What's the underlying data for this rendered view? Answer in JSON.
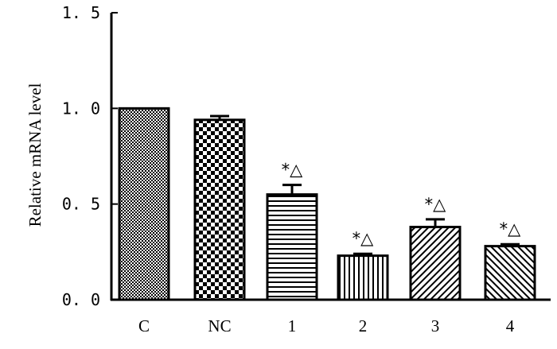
{
  "chart_data": {
    "type": "bar",
    "ylabel": "Relative mRNA level",
    "xlabel": "",
    "ylim": [
      0,
      1.5
    ],
    "yticks": [
      "0. 0",
      "0. 5",
      "1. 0",
      "1. 5"
    ],
    "ytick_values": [
      0,
      0.5,
      1.0,
      1.5
    ],
    "categories": [
      "C",
      "NC",
      "1",
      "2",
      "3",
      "4"
    ],
    "values": [
      1.0,
      0.94,
      0.55,
      0.23,
      0.38,
      0.28
    ],
    "errors": [
      0.0,
      0.02,
      0.05,
      0.01,
      0.04,
      0.01
    ],
    "significance": [
      "",
      "",
      "*△",
      "*△",
      "*△",
      "*△"
    ],
    "patterns": [
      "fine-check",
      "checker",
      "horizontal",
      "vertical",
      "diagonal-up",
      "diagonal-down"
    ],
    "colors": {
      "bar_edge": "#000000",
      "fill": "#000000",
      "background": "#ffffff"
    }
  }
}
